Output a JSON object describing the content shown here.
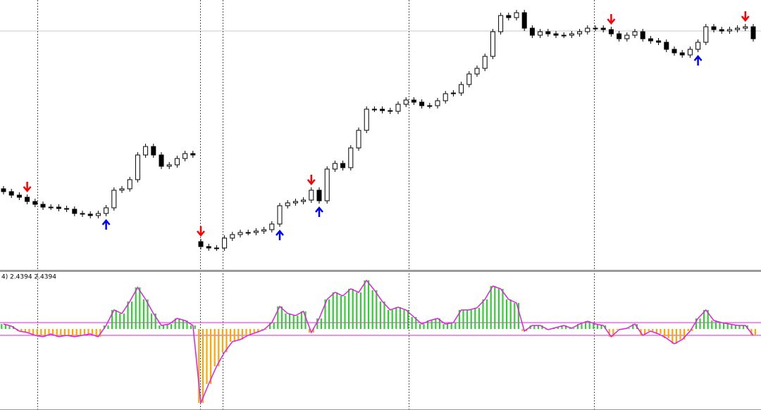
{
  "chart_data": [
    {
      "type": "candlestick",
      "open": [
        115,
        111,
        106,
        103,
        97,
        93,
        89,
        89,
        87,
        86,
        80,
        79,
        77,
        80,
        88,
        113,
        115,
        128,
        163,
        175,
        163,
        147,
        149,
        158,
        165,
        40,
        33,
        31,
        31,
        45,
        50,
        53,
        53,
        55,
        57,
        65,
        91,
        95,
        97,
        99,
        113,
        98,
        143,
        151,
        145,
        173,
        198,
        228,
        228,
        226,
        225,
        235,
        241,
        238,
        233,
        233,
        240,
        250,
        251,
        263,
        278,
        286,
        303,
        338,
        361,
        358,
        365,
        343,
        333,
        338,
        335,
        333,
        333,
        335,
        338,
        343,
        343,
        341,
        335,
        328,
        333,
        338,
        328,
        325,
        323,
        313,
        308,
        305,
        313,
        323,
        345,
        341,
        339,
        341,
        343,
        345
      ],
      "high": [
        119,
        115,
        110,
        107,
        101,
        97,
        93,
        93,
        91,
        90,
        84,
        83,
        84,
        92,
        117,
        119,
        132,
        167,
        179,
        179,
        167,
        153,
        162,
        169,
        169,
        44,
        37,
        35,
        49,
        54,
        57,
        57,
        59,
        61,
        69,
        95,
        99,
        101,
        103,
        117,
        117,
        147,
        155,
        155,
        177,
        202,
        232,
        232,
        232,
        230,
        239,
        245,
        245,
        242,
        237,
        244,
        254,
        255,
        267,
        282,
        290,
        307,
        342,
        365,
        365,
        369,
        369,
        347,
        342,
        342,
        339,
        337,
        339,
        342,
        347,
        347,
        347,
        345,
        339,
        337,
        342,
        342,
        332,
        329,
        327,
        317,
        312,
        317,
        327,
        349,
        349,
        345,
        345,
        347,
        349,
        349
      ],
      "low": [
        107,
        102,
        99,
        93,
        89,
        85,
        85,
        83,
        82,
        76,
        75,
        73,
        73,
        76,
        84,
        109,
        111,
        124,
        159,
        159,
        143,
        143,
        145,
        154,
        159,
        29,
        27,
        27,
        27,
        41,
        46,
        49,
        49,
        51,
        53,
        61,
        87,
        91,
        93,
        95,
        94,
        94,
        139,
        141,
        141,
        169,
        194,
        224,
        222,
        221,
        221,
        231,
        234,
        229,
        229,
        229,
        236,
        246,
        247,
        259,
        274,
        282,
        299,
        334,
        354,
        354,
        339,
        329,
        329,
        331,
        329,
        329,
        329,
        331,
        334,
        339,
        337,
        331,
        324,
        324,
        329,
        324,
        321,
        319,
        309,
        304,
        301,
        301,
        309,
        319,
        337,
        335,
        335,
        337,
        339,
        324
      ],
      "close": [
        111,
        106,
        103,
        97,
        93,
        89,
        89,
        87,
        86,
        80,
        79,
        77,
        80,
        88,
        113,
        115,
        128,
        163,
        175,
        163,
        147,
        149,
        158,
        165,
        163,
        33,
        31,
        31,
        45,
        50,
        53,
        53,
        55,
        57,
        65,
        91,
        95,
        97,
        99,
        113,
        98,
        143,
        151,
        145,
        173,
        198,
        228,
        228,
        226,
        225,
        235,
        241,
        238,
        233,
        233,
        240,
        250,
        251,
        263,
        278,
        286,
        303,
        338,
        361,
        358,
        365,
        343,
        333,
        338,
        335,
        333,
        333,
        335,
        338,
        343,
        343,
        341,
        335,
        328,
        333,
        338,
        328,
        325,
        323,
        313,
        308,
        305,
        313,
        323,
        345,
        341,
        339,
        341,
        343,
        345,
        328
      ],
      "ylim": [
        0,
        383
      ],
      "up_color": "#ffffff",
      "down_color": "#000000",
      "sell_signals": [
        3,
        25,
        39,
        77,
        94
      ],
      "sell_color": "#ff0000",
      "buy_signals": [
        13,
        35,
        40,
        88
      ],
      "buy_color": "#0000ff"
    },
    {
      "type": "histogram",
      "title": "4) 2.4394 2.4394",
      "values": [
        0.7,
        0.4,
        -0.3,
        -0.5,
        -0.9,
        -1.1,
        -0.7,
        -1.1,
        -0.9,
        -1.1,
        -0.9,
        -0.7,
        -1.1,
        0.5,
        2.7,
        2.2,
        3.9,
        5.9,
        4.2,
        2.2,
        0.5,
        0.7,
        1.5,
        1.2,
        0.5,
        -10.5,
        -7.8,
        -5.3,
        -3.3,
        -1.8,
        -1.5,
        -0.9,
        -0.5,
        -0.1,
        0.9,
        3.2,
        2.2,
        1.9,
        2.5,
        -0.5,
        1.5,
        4.2,
        5.2,
        4.7,
        5.7,
        5.2,
        6.9,
        5.5,
        3.9,
        2.7,
        3.1,
        2.7,
        1.7,
        0.7,
        1.2,
        1.5,
        0.7,
        0.9,
        2.7,
        2.7,
        3.0,
        4.2,
        6.1,
        5.7,
        4.2,
        3.7,
        -0.3,
        0.5,
        0.5,
        -0.1,
        0.2,
        0.5,
        0.1,
        0.7,
        1.1,
        0.7,
        0.5,
        -1.1,
        -0.1,
        0.1,
        0.7,
        -0.9,
        -0.3,
        -0.7,
        -1.3,
        -2.1,
        -1.5,
        -0.3,
        1.5,
        2.7,
        1.2,
        0.9,
        0.7,
        0.5,
        0.5,
        -0.9
      ],
      "ylim": [
        -11.3,
        8
      ],
      "levels": [
        0.9,
        -0.9
      ],
      "positive_color": "#32cd32",
      "negative_color": "#ffa500",
      "line_color": "#e020e0"
    }
  ]
}
